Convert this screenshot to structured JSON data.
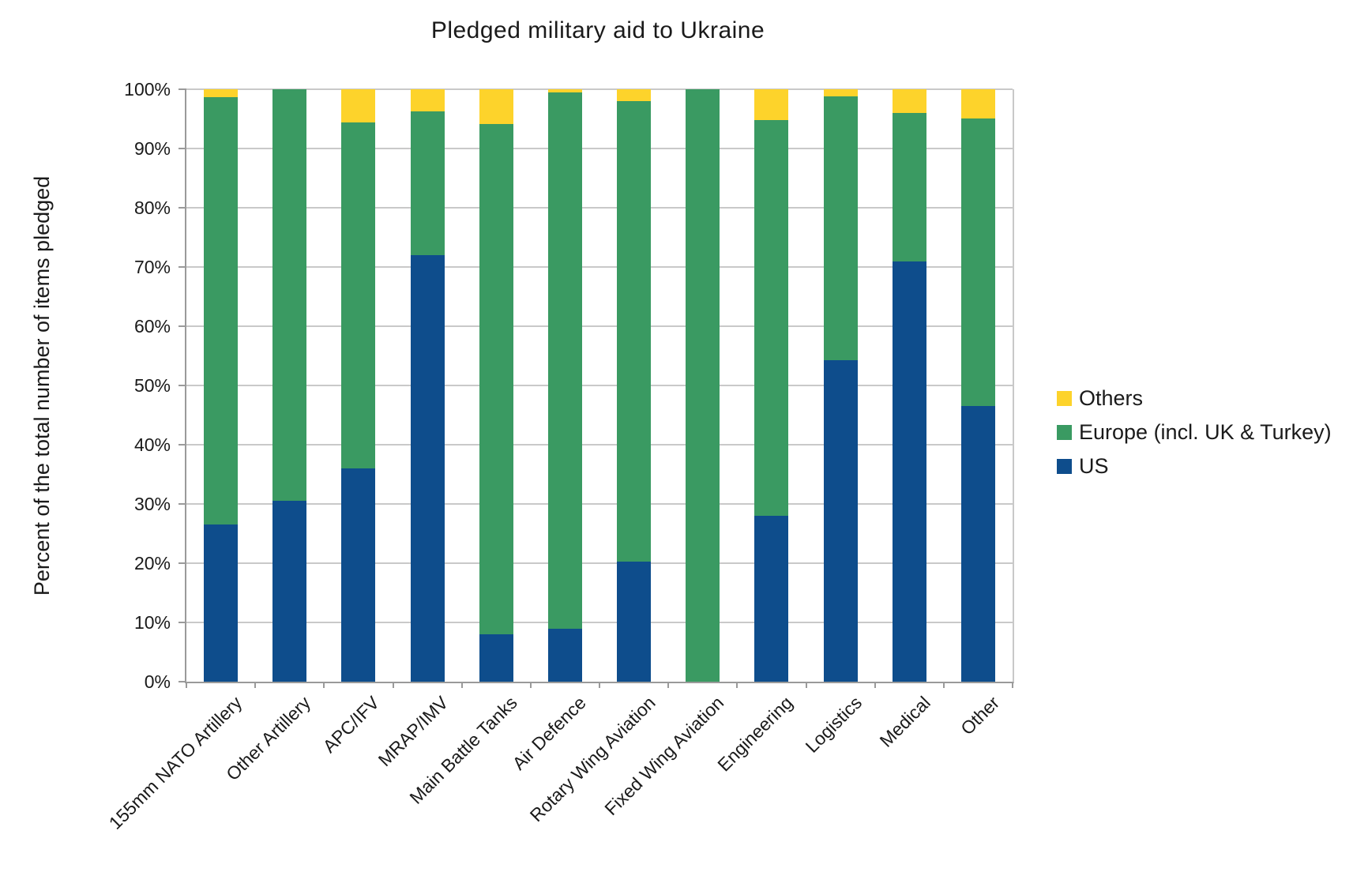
{
  "title": "Pledged military aid to Ukraine",
  "y_axis_title": "Percent of the total number of items pledged",
  "legend": {
    "items": [
      {
        "label": "Others",
        "color": "#FDD32B"
      },
      {
        "label": "Europe (incl. UK & Turkey)",
        "color": "#3A9A62"
      },
      {
        "label": "US",
        "color": "#0E4D8C"
      }
    ]
  },
  "chart_data": {
    "type": "bar",
    "stacked": true,
    "title": "Pledged military aid to Ukraine",
    "xlabel": "",
    "ylabel": "Percent of the total number of items pledged",
    "ylim": [
      0,
      100
    ],
    "yticks": [
      "0%",
      "10%",
      "20%",
      "30%",
      "40%",
      "50%",
      "60%",
      "70%",
      "80%",
      "90%",
      "100%"
    ],
    "grid": true,
    "legend_position": "right",
    "categories": [
      "155mm NATO Artillery",
      "Other Artillery",
      "APC/IFV",
      "MRAP/IMV",
      "Main Battle Tanks",
      "Air Defence",
      "Rotary Wing Aviation",
      "Fixed Wing Aviation",
      "Engineering",
      "Logistics",
      "Medical",
      "Other"
    ],
    "series": [
      {
        "name": "US",
        "color": "#0E4D8C",
        "values": [
          26.5,
          30.5,
          36.0,
          72.0,
          8.0,
          9.0,
          20.3,
          0.0,
          28.0,
          54.3,
          71.0,
          46.5
        ]
      },
      {
        "name": "Europe (incl. UK & Turkey)",
        "color": "#3A9A62",
        "values": [
          72.2,
          69.5,
          58.4,
          24.3,
          86.1,
          90.5,
          77.7,
          100.0,
          66.8,
          44.5,
          25.0,
          48.6
        ]
      },
      {
        "name": "Others",
        "color": "#FDD32B",
        "values": [
          1.3,
          0.0,
          5.6,
          3.7,
          5.9,
          0.5,
          2.0,
          0.0,
          5.2,
          1.2,
          4.0,
          4.9
        ]
      }
    ]
  }
}
